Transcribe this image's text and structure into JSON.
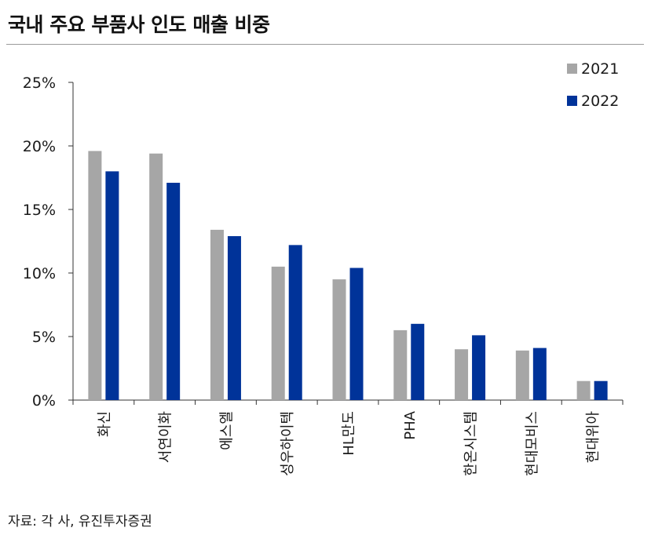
{
  "title": "국내 주요 부품사 인도 매출 비중",
  "source": "자료: 각 사, 유진투자증권",
  "chart_data": {
    "type": "bar",
    "categories": [
      "화신",
      "서연이화",
      "에스엘",
      "성우하이텍",
      "HL만도",
      "PHA",
      "한온시스템",
      "현대모비스",
      "현대위아"
    ],
    "series": [
      {
        "name": "2021",
        "values": [
          19.6,
          19.4,
          13.4,
          10.5,
          9.5,
          5.5,
          4.0,
          3.9,
          1.5
        ],
        "color": "#a6a6a6"
      },
      {
        "name": "2022",
        "values": [
          18.0,
          17.1,
          12.9,
          12.2,
          10.4,
          6.0,
          5.1,
          4.1,
          1.5
        ],
        "color": "#003399"
      }
    ],
    "ylim": [
      0,
      25
    ],
    "yticks": [
      0,
      5,
      10,
      15,
      20,
      25
    ],
    "ytick_labels": [
      "0%",
      "5%",
      "10%",
      "15%",
      "20%",
      "25%"
    ],
    "legend": "top-right",
    "grid": false
  }
}
